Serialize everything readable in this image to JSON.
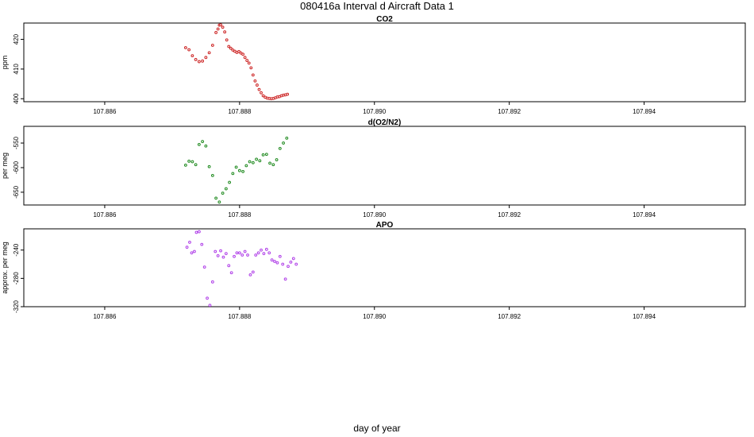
{
  "title": "080416a   Interval d Aircraft Data 1",
  "xlabel": "day of year",
  "chart_data": [
    {
      "type": "scatter",
      "title": "CO2",
      "ylabel": "ppm",
      "color": "#cc2222",
      "xlim": [
        107.8848,
        107.8955
      ],
      "ylim": [
        399.0,
        425.5
      ],
      "x_ticks": [
        "107.886",
        "107.888",
        "107.890",
        "107.892",
        "107.894"
      ],
      "y_ticks": [
        "400",
        "410",
        "420"
      ],
      "x": [
        107.8872,
        107.88725,
        107.8873,
        107.88735,
        107.8874,
        107.88745,
        107.8875,
        107.88755,
        107.8876,
        107.88765,
        107.88768,
        107.8877,
        107.88772,
        107.88775,
        107.88778,
        107.88781,
        107.88784,
        107.88787,
        107.8879,
        107.88793,
        107.88796,
        107.88799,
        107.88802,
        107.88805,
        107.88808,
        107.88811,
        107.88814,
        107.88817,
        107.8882,
        107.88823,
        107.88826,
        107.88829,
        107.88832,
        107.88835,
        107.88838,
        107.88841,
        107.88844,
        107.88847,
        107.8885,
        107.88853,
        107.88856,
        107.88859,
        107.88862,
        107.88865,
        107.88868,
        107.88871
      ],
      "y": [
        417.2,
        416.5,
        414.5,
        413.2,
        412.5,
        412.7,
        413.9,
        415.5,
        418.0,
        422.3,
        423.5,
        424.8,
        424.9,
        424.1,
        422.5,
        419.8,
        417.6,
        417.0,
        416.4,
        416.0,
        415.6,
        415.9,
        415.4,
        415.0,
        413.9,
        412.9,
        412.0,
        410.4,
        408.0,
        406.0,
        404.6,
        403.1,
        402.0,
        401.0,
        400.5,
        400.2,
        400.1,
        400.0,
        400.1,
        400.3,
        400.6,
        400.7,
        401.0,
        401.2,
        401.3,
        401.5
      ]
    },
    {
      "type": "scatter",
      "title": "d(O2/N2)",
      "ylabel": "per meg",
      "color": "#1f8a1f",
      "xlim": [
        107.8848,
        107.8955
      ],
      "ylim": [
        -676,
        -516
      ],
      "x_ticks": [
        "107.886",
        "107.888",
        "107.890",
        "107.892",
        "107.894"
      ],
      "y_ticks": [
        "-550",
        "-600",
        "-650"
      ],
      "x": [
        107.8872,
        107.88725,
        107.8873,
        107.88735,
        107.8874,
        107.88745,
        107.8875,
        107.88755,
        107.8876,
        107.88765,
        107.8877,
        107.88775,
        107.8878,
        107.88785,
        107.8879,
        107.88795,
        107.888,
        107.88805,
        107.8881,
        107.88815,
        107.8882,
        107.88825,
        107.8883,
        107.88835,
        107.8884,
        107.88845,
        107.8885,
        107.88855,
        107.8886,
        107.88865,
        107.8887
      ],
      "y": [
        -595,
        -587,
        -588,
        -594,
        -553,
        -547,
        -556,
        -598,
        -616,
        -662,
        -670,
        -652,
        -643,
        -630,
        -612,
        -599,
        -606,
        -608,
        -596,
        -588,
        -590,
        -583,
        -586,
        -574,
        -573,
        -591,
        -594,
        -584,
        -561,
        -550,
        -540
      ]
    },
    {
      "type": "scatter",
      "title": "APO",
      "ylabel": "approx. per meg",
      "color": "#b040e8",
      "xlim": [
        107.8848,
        107.8955
      ],
      "ylim": [
        -320,
        -210
      ],
      "x_ticks": [
        "107.886",
        "107.888",
        "107.890",
        "107.892",
        "107.894"
      ],
      "y_ticks": [
        "-240",
        "-280",
        "-320"
      ],
      "x": [
        107.88722,
        107.88726,
        107.88729,
        107.88733,
        107.88736,
        107.8874,
        107.88744,
        107.88748,
        107.88752,
        107.88756,
        107.8876,
        107.88764,
        107.88768,
        107.88772,
        107.88776,
        107.8878,
        107.88784,
        107.88788,
        107.88792,
        107.88796,
        107.888,
        107.88804,
        107.88808,
        107.88812,
        107.88816,
        107.8882,
        107.88824,
        107.88828,
        107.88832,
        107.88836,
        107.8884,
        107.88844,
        107.88848,
        107.88852,
        107.88856,
        107.8886,
        107.88864,
        107.88868,
        107.88872,
        107.88876,
        107.8888,
        107.88884
      ],
      "y": [
        -236,
        -229,
        -244,
        -242,
        -215,
        -214,
        -232,
        -264,
        -308,
        -318,
        -285,
        -242,
        -248,
        -241,
        -250,
        -245,
        -262,
        -272,
        -249,
        -244,
        -244,
        -247,
        -242,
        -247,
        -275,
        -271,
        -247,
        -244,
        -240,
        -245,
        -239,
        -244,
        -254,
        -256,
        -258,
        -249,
        -260,
        -281,
        -263,
        -257,
        -252,
        -260
      ]
    }
  ]
}
